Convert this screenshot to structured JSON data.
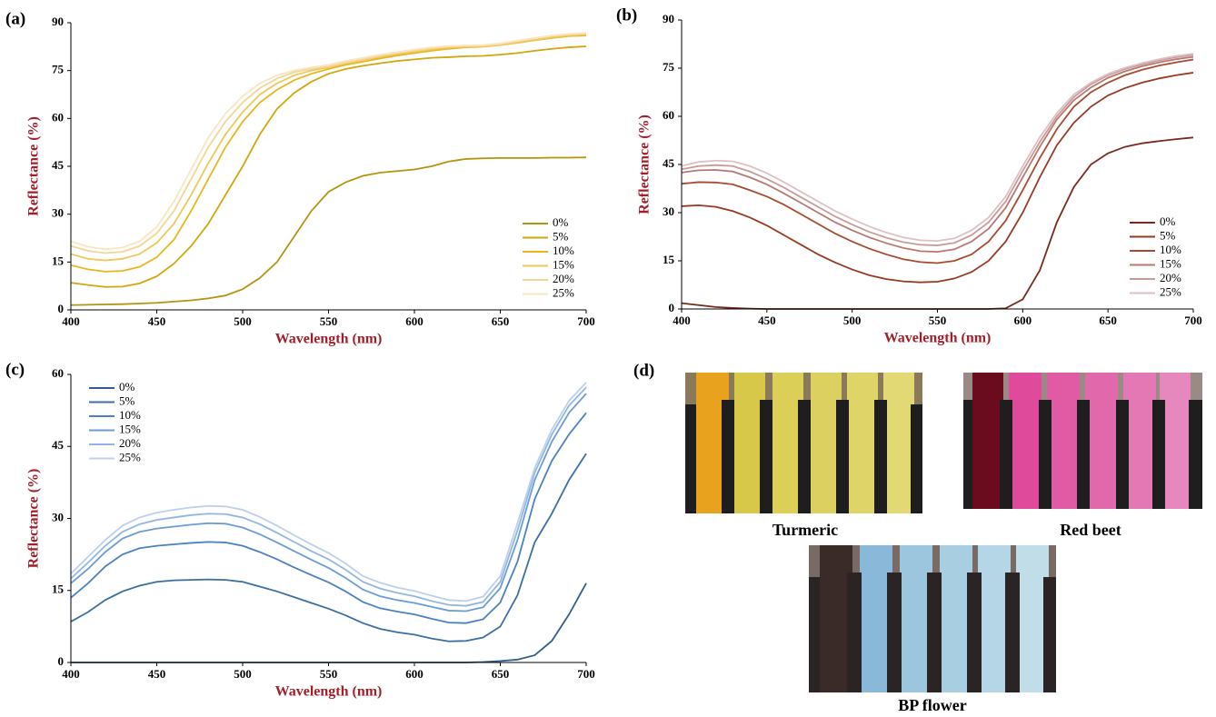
{
  "chart_data": [
    {
      "type": "line",
      "panel_label": "(a)",
      "xlabel": "Wavelength (nm)",
      "ylabel": "Reflectance (%)",
      "legend": "lower right",
      "x": [
        400,
        410,
        420,
        430,
        440,
        450,
        460,
        470,
        480,
        490,
        500,
        510,
        520,
        530,
        540,
        550,
        560,
        570,
        580,
        590,
        600,
        610,
        620,
        630,
        640,
        650,
        660,
        670,
        680,
        690,
        700
      ],
      "xlim": [
        400,
        700
      ],
      "xticks": [
        400,
        450,
        500,
        550,
        600,
        650,
        700
      ],
      "ylim": [
        0,
        90
      ],
      "yticks": [
        0,
        15,
        30,
        45,
        60,
        75,
        90
      ],
      "series": [
        {
          "name": "0%",
          "color": "#b5940f",
          "values": [
            1.5,
            1.6,
            1.7,
            1.8,
            2,
            2.2,
            2.6,
            3,
            3.6,
            4.5,
            6.5,
            10,
            15,
            23,
            31,
            37,
            40,
            42,
            43,
            43.5,
            44,
            45,
            46.5,
            47.3,
            47.5,
            47.6,
            47.6,
            47.6,
            47.7,
            47.7,
            47.8
          ]
        },
        {
          "name": "5%",
          "color": "#d2a60c",
          "values": [
            8.5,
            7.8,
            7.2,
            7.3,
            8.3,
            10.5,
            14.5,
            20,
            27,
            36,
            45,
            55,
            63,
            68,
            71.5,
            74,
            75.5,
            76.5,
            77.3,
            78,
            78.5,
            79,
            79.2,
            79.5,
            79.6,
            80,
            80.5,
            81.2,
            81.8,
            82.3,
            82.6
          ]
        },
        {
          "name": "10%",
          "color": "#e9b61c",
          "values": [
            14,
            12.7,
            12,
            12.2,
            13.5,
            16.5,
            22,
            31,
            41,
            51,
            59,
            65,
            69,
            72,
            74,
            75.5,
            76.8,
            77.8,
            78.8,
            79.7,
            80.5,
            81.2,
            81.8,
            82.3,
            82.5,
            83,
            83.7,
            84.5,
            85.2,
            85.8,
            86
          ]
        },
        {
          "name": "15%",
          "color": "#f0c75c",
          "values": [
            17.5,
            16,
            15.5,
            16,
            17.5,
            21,
            27,
            36,
            46,
            55,
            62,
            67.5,
            71,
            73.5,
            75,
            76,
            77.3,
            78.3,
            79.3,
            80.2,
            81,
            81.7,
            82.2,
            82.5,
            82.6,
            83,
            83.8,
            84.6,
            85.4,
            86,
            86.3
          ]
        },
        {
          "name": "20%",
          "color": "#f4d694",
          "values": [
            20,
            18.5,
            17.8,
            18.2,
            20,
            24,
            31,
            41,
            51,
            59,
            65,
            69.5,
            72.5,
            74.5,
            75.5,
            76.3,
            77.5,
            78.5,
            79.6,
            80.5,
            81.3,
            82,
            82.5,
            82.7,
            82.8,
            83.3,
            84.2,
            85,
            85.8,
            86.3,
            86.6
          ]
        },
        {
          "name": "25%",
          "color": "#f9e5c0",
          "values": [
            21.5,
            19.8,
            19,
            19.5,
            21.5,
            26,
            34,
            44,
            54,
            61.5,
            67,
            71,
            73.5,
            75,
            76,
            76.8,
            78,
            79,
            80,
            80.8,
            81.6,
            82.3,
            82.7,
            82.9,
            83,
            83.5,
            84.4,
            85.2,
            86,
            86.5,
            86.8
          ]
        }
      ]
    },
    {
      "type": "line",
      "panel_label": "(b)",
      "xlabel": "Wavelength (nm)",
      "ylabel": "Reflectance (%)",
      "legend": "lower right",
      "x": [
        400,
        410,
        420,
        430,
        440,
        450,
        460,
        470,
        480,
        490,
        500,
        510,
        520,
        530,
        540,
        550,
        560,
        570,
        580,
        590,
        600,
        610,
        620,
        630,
        640,
        650,
        660,
        670,
        680,
        690,
        700
      ],
      "xlim": [
        400,
        700
      ],
      "xticks": [
        400,
        450,
        500,
        550,
        600,
        650,
        700
      ],
      "ylim": [
        0,
        90
      ],
      "yticks": [
        0,
        15,
        30,
        45,
        60,
        75,
        90
      ],
      "series": [
        {
          "name": "0%",
          "color": "#7a2a1c",
          "values": [
            1.8,
            1.2,
            0.6,
            0.3,
            0.1,
            0,
            0,
            0,
            0,
            0,
            0,
            0,
            0,
            0,
            0,
            0,
            0,
            0,
            0,
            0.2,
            3,
            12,
            27,
            38,
            45,
            48.5,
            50.5,
            51.6,
            52.3,
            52.9,
            53.4
          ]
        },
        {
          "name": "5%",
          "color": "#973a22",
          "values": [
            32,
            32.3,
            31.8,
            30.5,
            28.5,
            26,
            23,
            20,
            17,
            14.5,
            12.3,
            10.5,
            9.3,
            8.6,
            8.3,
            8.5,
            9.5,
            11.5,
            15,
            21,
            30,
            41,
            51,
            58,
            63,
            66.5,
            68.8,
            70.5,
            71.8,
            72.8,
            73.6
          ]
        },
        {
          "name": "10%",
          "color": "#a84a30",
          "values": [
            39,
            39.5,
            39.4,
            38.8,
            37,
            35,
            32.5,
            29.5,
            26.5,
            23.5,
            21,
            18.8,
            17,
            15.5,
            14.6,
            14.3,
            15,
            17,
            21,
            27.5,
            37,
            47,
            56,
            63,
            67.5,
            70.5,
            72.8,
            74.5,
            75.8,
            76.8,
            77.7
          ]
        },
        {
          "name": "15%",
          "color": "#b77872",
          "values": [
            42.5,
            43.2,
            43.3,
            42.8,
            41,
            38.8,
            36,
            33,
            30,
            27,
            24.5,
            22.3,
            20.5,
            19,
            18,
            17.8,
            18.6,
            21,
            25,
            31.5,
            41,
            50.5,
            59,
            65,
            69,
            72,
            74,
            75.6,
            76.8,
            77.8,
            78.5
          ]
        },
        {
          "name": "20%",
          "color": "#c89a98",
          "values": [
            43.5,
            44.5,
            44.8,
            44.5,
            42.8,
            40.5,
            37.8,
            34.8,
            31.8,
            28.8,
            26.3,
            24,
            22.2,
            20.8,
            20,
            19.8,
            20.6,
            23,
            27,
            33.5,
            43,
            52,
            60,
            66,
            70,
            72.8,
            74.7,
            76.2,
            77.4,
            78.4,
            79.1
          ]
        },
        {
          "name": "25%",
          "color": "#dcc0c4",
          "values": [
            44.5,
            45.8,
            46.2,
            46,
            44.5,
            42.3,
            39.5,
            36.5,
            33.5,
            30.5,
            28,
            25.7,
            23.8,
            22.3,
            21.4,
            21.2,
            22,
            24.5,
            28.5,
            35,
            44.5,
            53.5,
            61,
            66.8,
            70.5,
            73.2,
            75.1,
            76.6,
            77.8,
            78.8,
            79.5
          ]
        }
      ]
    },
    {
      "type": "line",
      "panel_label": "(c)",
      "xlabel": "Wavelength (nm)",
      "ylabel": "Reflectance (%)",
      "legend": "upper left",
      "x": [
        400,
        410,
        420,
        430,
        440,
        450,
        460,
        470,
        480,
        490,
        500,
        510,
        520,
        530,
        540,
        550,
        560,
        570,
        580,
        590,
        600,
        610,
        620,
        630,
        640,
        650,
        660,
        670,
        680,
        690,
        700
      ],
      "xlim": [
        400,
        700
      ],
      "xticks": [
        400,
        450,
        500,
        550,
        600,
        650,
        700
      ],
      "ylim": [
        0,
        60
      ],
      "yticks": [
        0,
        15,
        30,
        45,
        60
      ],
      "series": [
        {
          "name": "0%",
          "color": "#2f5f8a",
          "values": [
            0,
            0,
            0,
            0,
            0,
            0,
            0,
            0,
            0,
            0,
            0,
            0,
            0,
            0,
            0,
            0,
            0,
            0,
            0,
            0,
            0,
            0,
            0,
            0,
            0.1,
            0.3,
            0.6,
            1.5,
            4.5,
            10,
            16.5
          ]
        },
        {
          "name": "5%",
          "color": "#3a6fa2",
          "values": [
            8.5,
            10.5,
            13,
            14.8,
            16,
            16.8,
            17.1,
            17.2,
            17.3,
            17.2,
            16.8,
            15.8,
            14.8,
            13.6,
            12.4,
            11.2,
            9.8,
            8.2,
            7,
            6.3,
            5.8,
            5,
            4.4,
            4.5,
            5.2,
            7.5,
            14,
            25,
            31,
            38,
            43.5
          ]
        },
        {
          "name": "10%",
          "color": "#4a82bf",
          "values": [
            13.5,
            16.5,
            20,
            22.5,
            23.8,
            24.3,
            24.6,
            24.9,
            25.1,
            25,
            24.3,
            23,
            21.5,
            19.8,
            18.2,
            16.7,
            14.8,
            12.6,
            11.3,
            10.6,
            10,
            9.1,
            8.3,
            8.2,
            9,
            12.5,
            21,
            34,
            42,
            47.5,
            52
          ]
        },
        {
          "name": "15%",
          "color": "#6a9cd6",
          "values": [
            16.5,
            19.5,
            23,
            25.8,
            27.2,
            27.9,
            28.3,
            28.7,
            29,
            28.9,
            28.1,
            26.7,
            25,
            23.2,
            21.4,
            19.7,
            17.6,
            15.2,
            13.8,
            13,
            12.4,
            11.6,
            10.8,
            10.7,
            11.5,
            15.5,
            25.5,
            38,
            46,
            52,
            56
          ]
        },
        {
          "name": "20%",
          "color": "#92b6e2",
          "values": [
            17.5,
            20.8,
            24.3,
            27.2,
            28.8,
            29.7,
            30.2,
            30.7,
            31,
            30.9,
            30.2,
            28.8,
            27,
            25.1,
            23.2,
            21.5,
            19.3,
            16.8,
            15.4,
            14.5,
            13.8,
            12.8,
            12,
            11.8,
            12.6,
            16.8,
            27.5,
            39.5,
            47.5,
            53.5,
            57.3
          ]
        },
        {
          "name": "25%",
          "color": "#bcd0ec",
          "values": [
            18.5,
            22,
            25.5,
            28.5,
            30.2,
            31.2,
            31.8,
            32.3,
            32.6,
            32.5,
            31.8,
            30.3,
            28.5,
            26.5,
            24.6,
            22.8,
            20.6,
            18,
            16.6,
            15.6,
            14.9,
            13.9,
            13,
            12.8,
            13.7,
            18,
            29,
            40.5,
            48.5,
            54.5,
            58.3
          ]
        }
      ]
    }
  ],
  "photos": {
    "panel_label": "(d)",
    "items": [
      "Turmeric",
      "Red beet",
      "BP flower"
    ]
  }
}
